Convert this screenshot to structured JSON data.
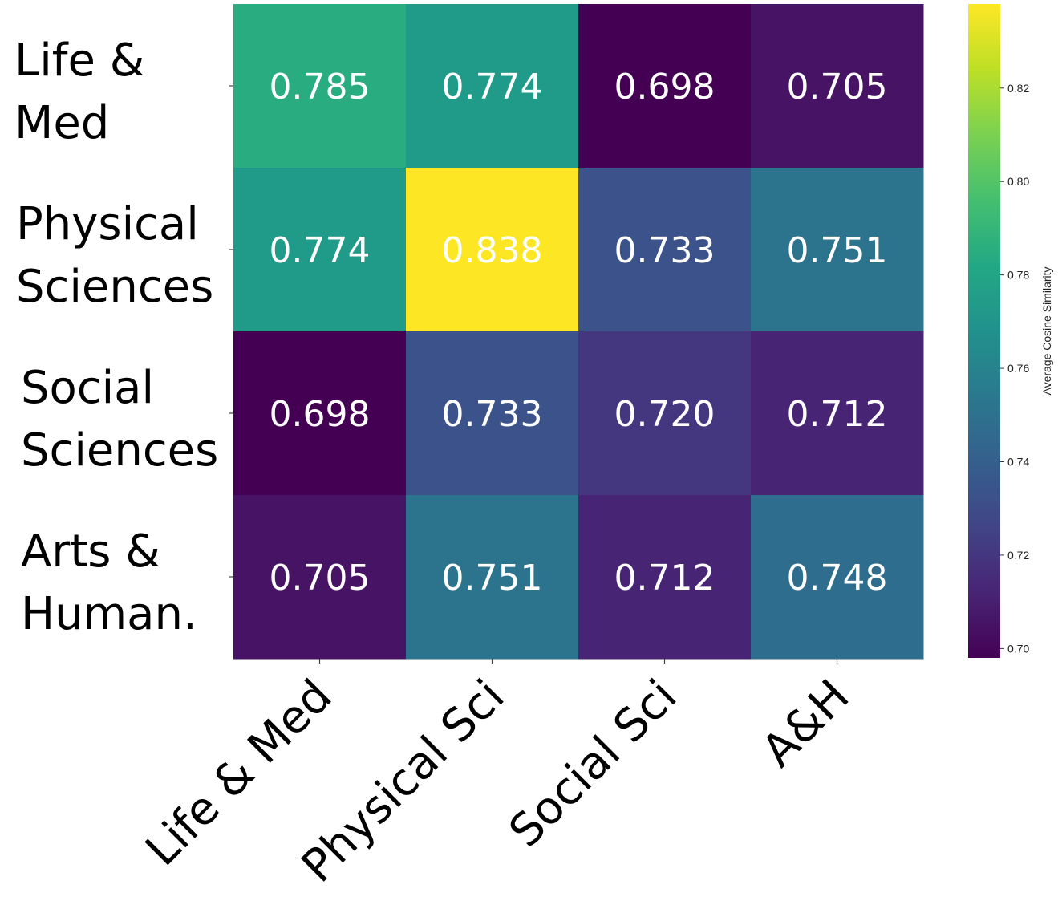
{
  "chart_data": {
    "type": "heatmap",
    "title": "",
    "row_labels": [
      [
        "Life &",
        "Med"
      ],
      [
        "Physical",
        "Sciences"
      ],
      [
        "Social",
        "Sciences"
      ],
      [
        "Arts &",
        "Human."
      ]
    ],
    "col_labels": [
      "Life & Med",
      "Physical Sci",
      "Social Sci",
      "A&H"
    ],
    "values": [
      [
        0.785,
        0.774,
        0.698,
        0.705
      ],
      [
        0.774,
        0.838,
        0.733,
        0.751
      ],
      [
        0.698,
        0.733,
        0.72,
        0.712
      ],
      [
        0.705,
        0.751,
        0.712,
        0.748
      ]
    ],
    "value_labels": [
      [
        "0.785",
        "0.774",
        "0.698",
        "0.705"
      ],
      [
        "0.774",
        "0.838",
        "0.733",
        "0.751"
      ],
      [
        "0.698",
        "0.733",
        "0.720",
        "0.712"
      ],
      [
        "0.705",
        "0.751",
        "0.712",
        "0.748"
      ]
    ],
    "colormap": "viridis",
    "vmin": 0.698,
    "vmax": 0.838,
    "colorbar": {
      "label": "Average Cosine Similarity",
      "ticks": [
        0.7,
        0.72,
        0.74,
        0.76,
        0.78,
        0.8,
        0.82
      ],
      "tick_labels": [
        "0.70",
        "0.72",
        "0.74",
        "0.76",
        "0.78",
        "0.80",
        "0.82"
      ],
      "placement": "right"
    }
  }
}
